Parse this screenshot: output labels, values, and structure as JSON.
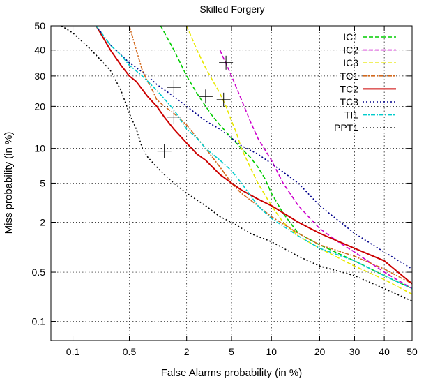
{
  "chart_data": {
    "type": "line",
    "title": "Skilled Forgery",
    "xlabel": "False Alarms probability (in %)",
    "ylabel": "Miss probability (in %)",
    "x_scale": "probit",
    "y_scale": "probit",
    "xlim": [
      0.05,
      50
    ],
    "ylim": [
      0.05,
      50
    ],
    "xticks": [
      0.1,
      0.5,
      2,
      5,
      10,
      20,
      30,
      40,
      50
    ],
    "xtick_labels": [
      "0.1",
      "0.5",
      "2",
      "5",
      "10",
      "20",
      "30",
      "40",
      "50"
    ],
    "yticks": [
      0.1,
      0.5,
      2,
      5,
      10,
      20,
      30,
      40,
      50
    ],
    "ytick_labels": [
      "0.1",
      "0.5",
      "2",
      "5",
      "10",
      "20",
      "30",
      "40",
      "50"
    ],
    "grid": true,
    "legend_position": "top-right",
    "series": [
      {
        "name": "IC1",
        "color": "#00cc00",
        "dash": "dash",
        "x": [
          1.1,
          1.5,
          2.0,
          2.5,
          3.0,
          3.5,
          4.0,
          5.0,
          6.0,
          7.0,
          8.0,
          9.0,
          10.0,
          12.0,
          15.0,
          20.0,
          30.0,
          40.0,
          50.0
        ],
        "y": [
          50,
          40,
          30,
          24,
          20,
          17,
          15,
          12,
          10,
          8.5,
          7,
          5.5,
          4,
          2.5,
          1.5,
          1.1,
          0.7,
          0.45,
          0.3
        ],
        "marker": [
          3.0,
          23
        ]
      },
      {
        "name": "IC2",
        "color": "#cc00cc",
        "dash": "dash",
        "x": [
          4.0,
          5.0,
          6.0,
          7.0,
          8.0,
          10.0,
          12.0,
          15.0,
          20.0,
          25.0,
          30.0,
          40.0,
          50.0
        ],
        "y": [
          40,
          30,
          22,
          16,
          12,
          8,
          5,
          3,
          1.7,
          1.2,
          0.9,
          0.5,
          0.3
        ],
        "marker": [
          4.5,
          35
        ]
      },
      {
        "name": "IC3",
        "color": "#e8e800",
        "dash": "dash",
        "x": [
          2.0,
          2.5,
          3.0,
          3.5,
          4.0,
          4.5,
          5.0,
          5.5,
          6.0,
          7.0,
          8.0,
          10.0,
          12.0,
          15.0,
          20.0,
          30.0,
          40.0,
          50.0
        ],
        "y": [
          50,
          40,
          33,
          28,
          24,
          20,
          16,
          13,
          10,
          7,
          5,
          3,
          2,
          1.4,
          1,
          0.6,
          0.4,
          0.25
        ],
        "marker": [
          4.3,
          22
        ]
      },
      {
        "name": "TC1",
        "color": "#d2691e",
        "dash": "dashdot",
        "x": [
          0.5,
          0.6,
          0.7,
          0.8,
          0.9,
          1.0,
          1.2,
          1.5,
          2.0,
          3.0,
          4.0,
          5.0,
          6.0,
          8.0,
          10.0,
          15.0,
          20.0,
          30.0,
          40.0,
          50.0
        ],
        "y": [
          50,
          40,
          32,
          28,
          25,
          22,
          20,
          18,
          15,
          10,
          7,
          5,
          4,
          3,
          2.3,
          1.5,
          1.1,
          0.8,
          0.55,
          0.35
        ]
      },
      {
        "name": "TC2",
        "color": "#cc0000",
        "dash": "solid",
        "x": [
          0.2,
          0.3,
          0.4,
          0.5,
          0.6,
          0.8,
          1.0,
          1.2,
          1.5,
          2.0,
          2.5,
          3.0,
          4.0,
          5.0,
          6.0,
          8.0,
          10.0,
          15.0,
          20.0,
          30.0,
          40.0,
          50.0
        ],
        "y": [
          50,
          40,
          34,
          30,
          28,
          23,
          20,
          17,
          14,
          11,
          9,
          8,
          6,
          5,
          4.3,
          3.5,
          3,
          2,
          1.5,
          1,
          0.7,
          0.35
        ],
        "marker": [
          1.5,
          17
        ]
      },
      {
        "name": "TC3",
        "color": "#00008b",
        "dash": "dot",
        "x": [
          0.2,
          0.3,
          0.5,
          0.8,
          1.0,
          1.5,
          2.0,
          3.0,
          4.0,
          5.0,
          6.0,
          8.0,
          10.0,
          15.0,
          20.0,
          30.0,
          40.0,
          50.0
        ],
        "y": [
          50,
          42,
          35,
          30,
          27,
          23,
          20,
          16,
          14,
          12,
          10.5,
          9,
          7.5,
          5,
          3,
          1.5,
          0.9,
          0.55
        ],
        "marker": [
          1.5,
          26
        ]
      },
      {
        "name": "TI1",
        "color": "#00cccc",
        "dash": "dashdot",
        "x": [
          0.2,
          0.3,
          0.4,
          0.5,
          0.7,
          1.0,
          1.5,
          2.0,
          2.5,
          3.0,
          4.0,
          5.0,
          6.0,
          8.0,
          10.0,
          15.0,
          20.0,
          30.0,
          40.0,
          50.0
        ],
        "y": [
          50,
          42,
          38,
          34,
          30,
          25,
          19,
          14,
          12,
          10,
          8,
          6.5,
          5,
          3,
          2.2,
          1.4,
          1,
          0.7,
          0.45,
          0.3
        ]
      },
      {
        "name": "PPT1",
        "color": "#000000",
        "dash": "dot",
        "x": [
          0.07,
          0.1,
          0.15,
          0.2,
          0.3,
          0.4,
          0.5,
          0.6,
          0.7,
          0.8,
          1.0,
          1.2,
          1.5,
          2.0,
          3.0,
          4.0,
          5.0,
          7.0,
          10.0,
          15.0,
          20.0,
          30.0,
          40.0,
          50.0
        ],
        "y": [
          50,
          47,
          42,
          38,
          32,
          25,
          18,
          14,
          10,
          8.5,
          7,
          6,
          5,
          4,
          3,
          2.3,
          2,
          1.5,
          1.2,
          0.8,
          0.6,
          0.45,
          0.3,
          0.2
        ],
        "marker": [
          1.2,
          9.5
        ]
      }
    ]
  }
}
